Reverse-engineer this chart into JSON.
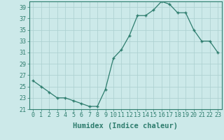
{
  "x": [
    0,
    1,
    2,
    3,
    4,
    5,
    6,
    7,
    8,
    9,
    10,
    11,
    12,
    13,
    14,
    15,
    16,
    17,
    18,
    19,
    20,
    21,
    22,
    23
  ],
  "y": [
    26,
    25,
    24,
    23,
    23,
    22.5,
    22,
    21.5,
    21.5,
    24.5,
    30,
    31.5,
    34,
    37.5,
    37.5,
    38.5,
    40,
    39.5,
    38,
    38,
    35,
    33,
    33,
    31
  ],
  "xlabel": "Humidex (Indice chaleur)",
  "ylim": [
    21,
    40
  ],
  "xlim": [
    -0.5,
    23.5
  ],
  "yticks": [
    21,
    23,
    25,
    27,
    29,
    31,
    33,
    35,
    37,
    39
  ],
  "xticks": [
    0,
    1,
    2,
    3,
    4,
    5,
    6,
    7,
    8,
    9,
    10,
    11,
    12,
    13,
    14,
    15,
    16,
    17,
    18,
    19,
    20,
    21,
    22,
    23
  ],
  "line_color": "#2e7d6e",
  "marker": "+",
  "bg_color": "#cce9e9",
  "grid_color": "#aacfcf",
  "tick_label_fontsize": 6.0,
  "xlabel_fontsize": 7.5,
  "xlabel_fontweight": "bold"
}
